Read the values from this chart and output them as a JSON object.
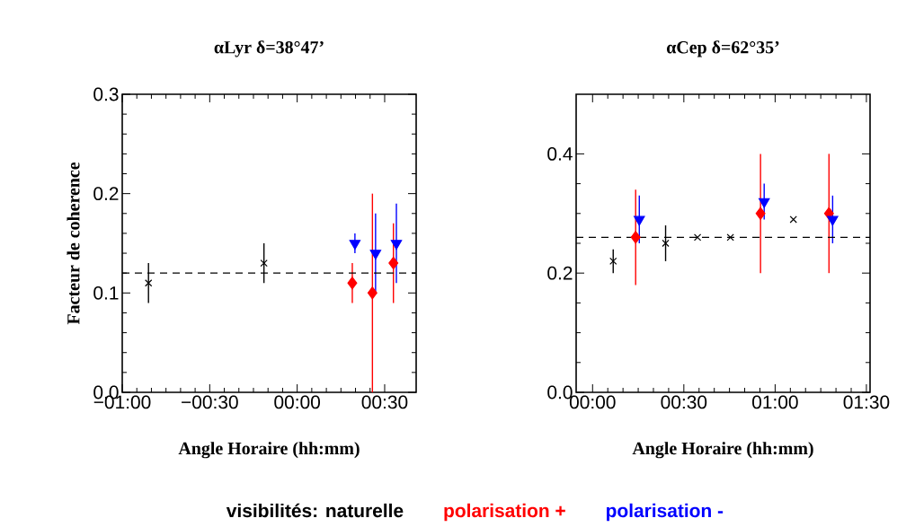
{
  "chart_data": [
    {
      "type": "scatter",
      "title": "αLyr δ=38°47’",
      "xlabel": "Angle Horaire (hh:mm)",
      "ylabel": "Facteur de coherence",
      "xlim": [
        -1.0,
        0.68
      ],
      "ylim": [
        0,
        0.3
      ],
      "xticks": [
        {
          "value": -1,
          "label": "−01:00"
        },
        {
          "value": -0.5,
          "label": "−00:30"
        },
        {
          "value": 0,
          "label": "00:00"
        },
        {
          "value": 0.5,
          "label": "00:30"
        }
      ],
      "yticks": [
        {
          "value": 0,
          "label": "0.0"
        },
        {
          "value": 0.1,
          "label": "0.1"
        },
        {
          "value": 0.2,
          "label": "0.2"
        },
        {
          "value": 0.3,
          "label": "0.3"
        }
      ],
      "legend": "bottom",
      "grid": false,
      "ref_lines": [
        {
          "axis": "y",
          "value": 0.12,
          "color": "#000000",
          "line_style": "dashed"
        }
      ],
      "series": [
        {
          "name": "visibilités: naturelle",
          "color": "#000000",
          "marker": "cross",
          "x": [
            -0.85,
            -0.19
          ],
          "values": [
            0.11,
            0.13
          ],
          "errors": [
            0.02,
            0.02
          ]
        },
        {
          "name": "polarisation +",
          "color": "#ff0000",
          "marker": "diamond",
          "x": [
            0.315,
            0.43,
            0.55
          ],
          "values": [
            0.11,
            0.1,
            0.13
          ],
          "errors": [
            0.02,
            0.1,
            0.04
          ]
        },
        {
          "name": "polarisation -",
          "color": "#0000ff",
          "marker": "triangle",
          "x": [
            0.33,
            0.448,
            0.567
          ],
          "values": [
            0.15,
            0.14,
            0.15
          ],
          "errors": [
            0.01,
            0.04,
            0.04
          ]
        }
      ]
    },
    {
      "type": "scatter",
      "title": "αCep δ=62°35’",
      "xlabel": "Angle Horaire (hh:mm)",
      "xlim": [
        -0.09,
        1.52
      ],
      "ylim": [
        0,
        0.5
      ],
      "xticks": [
        {
          "value": 0,
          "label": "00:00"
        },
        {
          "value": 0.5,
          "label": "00:30"
        },
        {
          "value": 1,
          "label": "01:00"
        },
        {
          "value": 1.5,
          "label": "01:30"
        }
      ],
      "yticks": [
        {
          "value": 0,
          "label": "0.0"
        },
        {
          "value": 0.2,
          "label": "0.2"
        },
        {
          "value": 0.4,
          "label": "0.4"
        }
      ],
      "grid": false,
      "ref_lines": [
        {
          "axis": "y",
          "value": 0.26,
          "color": "#000000",
          "line_style": "dashed"
        }
      ],
      "series": [
        {
          "color": "#000000",
          "marker": "cross",
          "x": [
            0.113,
            0.4,
            0.575,
            0.755,
            1.1
          ],
          "values": [
            0.22,
            0.25,
            0.26,
            0.26,
            0.29
          ],
          "errors": [
            0.02,
            0.03,
            null,
            null,
            null
          ]
        },
        {
          "color": "#ff0000",
          "marker": "diamond",
          "x": [
            0.236,
            0.92,
            1.295
          ],
          "values": [
            0.26,
            0.3,
            0.3
          ],
          "errors": [
            0.08,
            0.1,
            0.1
          ]
        },
        {
          "color": "#0000ff",
          "marker": "triangle",
          "x": [
            0.256,
            0.94,
            1.315
          ],
          "values": [
            0.29,
            0.32,
            0.29
          ],
          "errors": [
            0.04,
            0.03,
            0.04
          ]
        }
      ]
    }
  ]
}
